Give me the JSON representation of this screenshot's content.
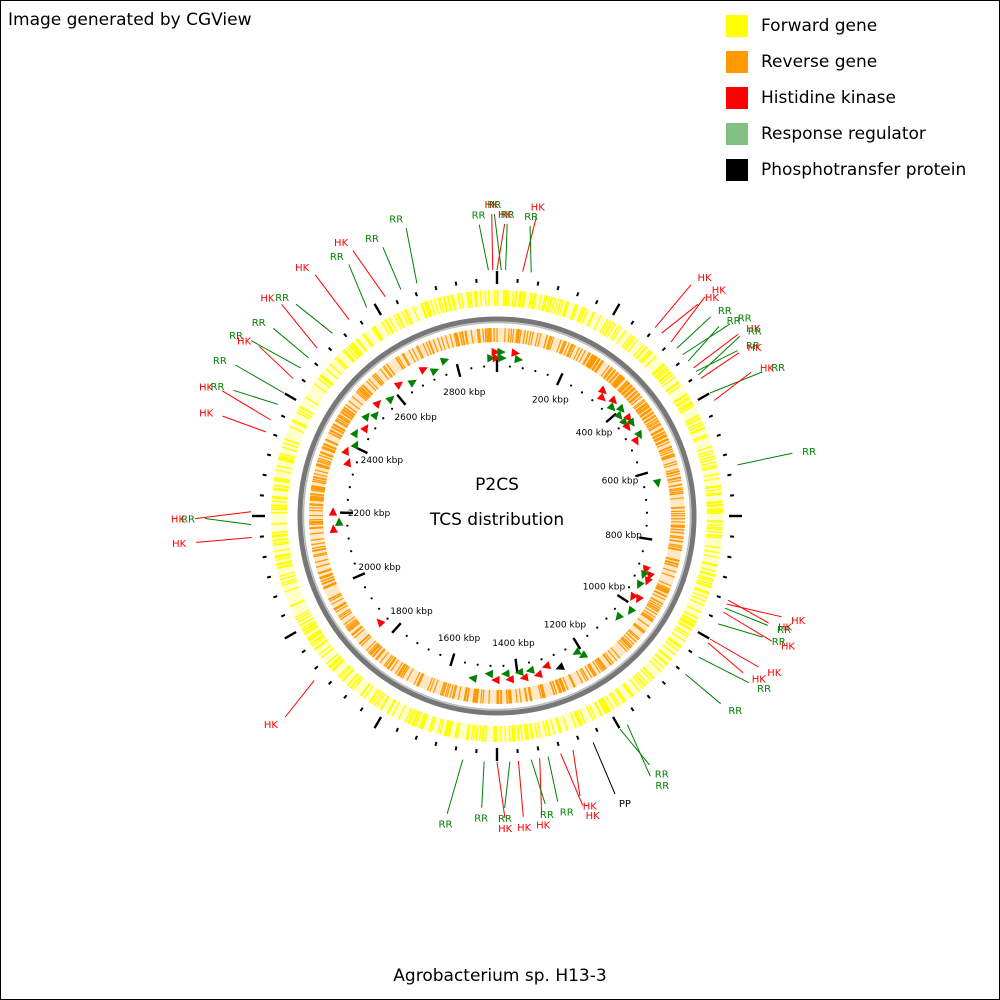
{
  "credit": "Image generated by CGView",
  "organism": "Agrobacterium sp. H13-3",
  "center": {
    "line1": "P2CS",
    "line2": "TCS distribution"
  },
  "legend": [
    {
      "name": "legend-forward-gene",
      "label": "Forward gene",
      "color": "#ffff00"
    },
    {
      "name": "legend-reverse-gene",
      "label": "Reverse gene",
      "color": "#ff9900"
    },
    {
      "name": "legend-histidine-kinase",
      "label": "Histidine kinase",
      "color": "#ff0000"
    },
    {
      "name": "legend-response-regulator",
      "label": "Response regulator",
      "color": "#80c080"
    },
    {
      "name": "legend-phosphotransfer-protein",
      "label": "Phosphotransfer protein",
      "color": "#000000"
    }
  ],
  "ticks": [
    "200 kbp",
    "400 kbp",
    "600 kbp",
    "800 kbp",
    "1000 kbp",
    "1200 kbp",
    "1400 kbp",
    "1600 kbp",
    "1800 kbp",
    "2000 kbp",
    "2200 kbp",
    "2400 kbp",
    "2600 kbp",
    "2800 kbp"
  ],
  "genome_length_kbp": 2920,
  "features": [
    {
      "label": "RR",
      "type": "RR",
      "a": -2
    },
    {
      "label": "HK",
      "type": "HK",
      "a": -1
    },
    {
      "label": "HK",
      "type": "HK",
      "a": 0
    },
    {
      "label": "RR",
      "type": "RR",
      "a": 1
    },
    {
      "label": "RR",
      "type": "RR",
      "a": 2
    },
    {
      "label": "HK",
      "type": "HK",
      "a": 6
    },
    {
      "label": "RR",
      "type": "RR",
      "a": 8
    },
    {
      "label": "HK",
      "type": "HK",
      "a": 40
    },
    {
      "label": "HK",
      "type": "HK",
      "a": 42
    },
    {
      "label": "HK",
      "type": "HK",
      "a": 45
    },
    {
      "label": "RR",
      "type": "RR",
      "a": 47
    },
    {
      "label": "RR",
      "type": "RR",
      "a": 49
    },
    {
      "label": "RR",
      "type": "RR",
      "a": 51
    },
    {
      "label": "HK",
      "type": "HK",
      "a": 53
    },
    {
      "label": "RR",
      "type": "RR",
      "a": 54
    },
    {
      "label": "RR",
      "type": "RR",
      "a": 55
    },
    {
      "label": "HK",
      "type": "HK",
      "a": 56
    },
    {
      "label": "RR",
      "type": "RR",
      "a": 60
    },
    {
      "label": "HK",
      "type": "HK",
      "a": 62
    },
    {
      "label": "RR",
      "type": "RR",
      "a": 78
    },
    {
      "label": "HK",
      "type": "HK",
      "a": 110
    },
    {
      "label": "HK",
      "type": "HK",
      "a": 111
    },
    {
      "label": "RR",
      "type": "RR",
      "a": 112
    },
    {
      "label": "HK",
      "type": "HK",
      "a": 113
    },
    {
      "label": "RR",
      "type": "RR",
      "a": 116
    },
    {
      "label": "HK",
      "type": "HK",
      "a": 120
    },
    {
      "label": "HK",
      "type": "HK",
      "a": 121
    },
    {
      "label": "RR",
      "type": "RR",
      "a": 125
    },
    {
      "label": "RR",
      "type": "RR",
      "a": 130
    },
    {
      "label": "RR",
      "type": "RR",
      "a": 148
    },
    {
      "label": "RR",
      "type": "RR",
      "a": 150
    },
    {
      "label": "PP",
      "type": "PP",
      "a": 157
    },
    {
      "label": "HK",
      "type": "HK",
      "a": 162
    },
    {
      "label": "HK",
      "type": "HK",
      "a": 165
    },
    {
      "label": "RR",
      "type": "RR",
      "a": 168
    },
    {
      "label": "HK",
      "type": "HK",
      "a": 170
    },
    {
      "label": "RR",
      "type": "RR",
      "a": 172
    },
    {
      "label": "HK",
      "type": "HK",
      "a": 175
    },
    {
      "label": "RR",
      "type": "RR",
      "a": 177
    },
    {
      "label": "HK",
      "type": "HK",
      "a": 180
    },
    {
      "label": "RR",
      "type": "RR",
      "a": 183
    },
    {
      "label": "RR",
      "type": "RR",
      "a": 188
    },
    {
      "label": "HK",
      "type": "HK",
      "a": 228
    },
    {
      "label": "HK",
      "type": "HK",
      "a": 265
    },
    {
      "label": "RR",
      "type": "RR",
      "a": 268
    },
    {
      "label": "HK",
      "type": "HK",
      "a": 271
    },
    {
      "label": "HK",
      "type": "HK",
      "a": 290
    },
    {
      "label": "HK",
      "type": "HK",
      "a": 293
    },
    {
      "label": "RR",
      "type": "RR",
      "a": 297
    },
    {
      "label": "RR",
      "type": "RR",
      "a": 300
    },
    {
      "label": "HK",
      "type": "HK",
      "a": 304
    },
    {
      "label": "RR",
      "type": "RR",
      "a": 307
    },
    {
      "label": "RR",
      "type": "RR",
      "a": 310
    },
    {
      "label": "HK",
      "type": "HK",
      "a": 313
    },
    {
      "label": "RR",
      "type": "RR",
      "a": 318
    },
    {
      "label": "HK",
      "type": "HK",
      "a": 323
    },
    {
      "label": "RR",
      "type": "RR",
      "a": 328
    },
    {
      "label": "HK",
      "type": "HK",
      "a": 333
    },
    {
      "label": "RR",
      "type": "RR",
      "a": 337
    },
    {
      "label": "RR",
      "type": "RR",
      "a": 341
    }
  ]
}
